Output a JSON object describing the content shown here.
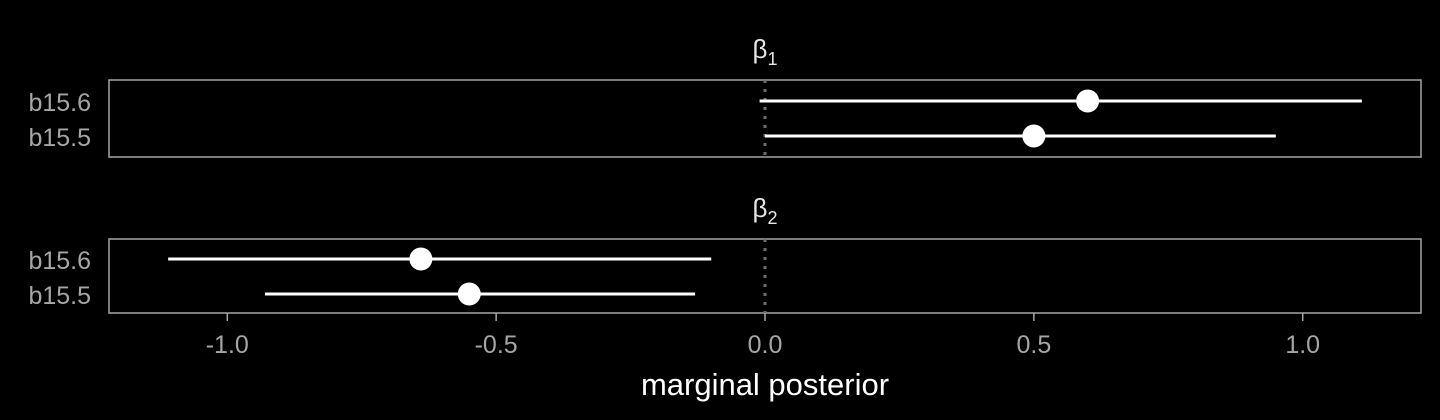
{
  "chart_data": {
    "type": "scatter",
    "xlabel": "marginal posterior",
    "xlim": [
      -1.22,
      1.22
    ],
    "x_ticks": [
      -1.0,
      -0.5,
      0.0,
      0.5,
      1.0
    ],
    "x_tick_labels": [
      "-1.0",
      "-0.5",
      "0.0",
      "0.5",
      "1.0"
    ],
    "reference_line": 0.0,
    "panels": [
      {
        "title": "β",
        "title_subscript": "1",
        "rows": [
          {
            "label": "b15.6",
            "estimate": 0.6,
            "lower": -0.01,
            "upper": 1.11
          },
          {
            "label": "b15.5",
            "estimate": 0.5,
            "lower": 0.0,
            "upper": 0.95
          }
        ]
      },
      {
        "title": "β",
        "title_subscript": "2",
        "rows": [
          {
            "label": "b15.6",
            "estimate": -0.64,
            "lower": -1.11,
            "upper": -0.1
          },
          {
            "label": "b15.5",
            "estimate": -0.55,
            "lower": -0.93,
            "upper": -0.13
          }
        ]
      }
    ],
    "colors": {
      "background": "#000000",
      "panel_border": "#a6a6a6",
      "points": "#ffffff",
      "intervals": "#ffffff",
      "tick_labels": "#a6a6a6",
      "reference_line": "#6e6e6e",
      "title": "#e6e6e6"
    },
    "grid": false
  }
}
